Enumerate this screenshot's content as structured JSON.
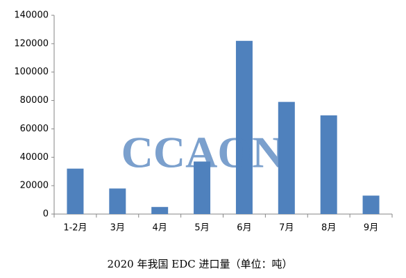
{
  "chart_data": {
    "type": "bar",
    "title": "2020 年我国 EDC 进口量（单位：吨）",
    "watermark": "CCAON",
    "categories": [
      "1-2月",
      "3月",
      "4月",
      "5月",
      "6月",
      "7月",
      "8月",
      "9月"
    ],
    "values": [
      32000,
      18000,
      5000,
      37000,
      122000,
      79000,
      69500,
      13000
    ],
    "color": "#4f81bd",
    "ylim": [
      0,
      140000
    ],
    "yticks": [
      0,
      20000,
      40000,
      60000,
      80000,
      100000,
      120000,
      140000
    ],
    "grid": false
  }
}
